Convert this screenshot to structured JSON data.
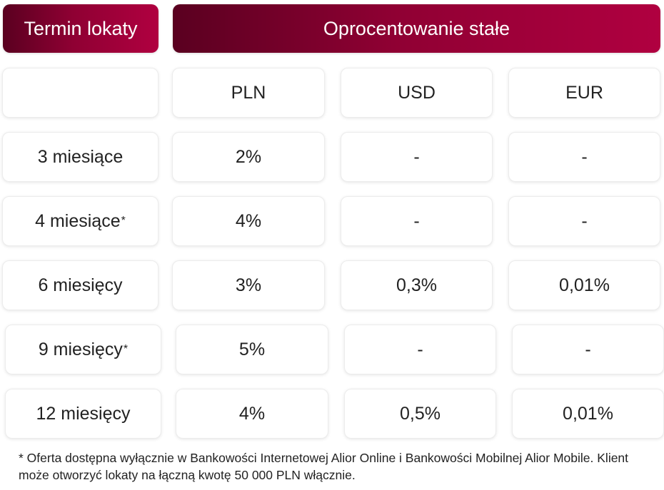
{
  "header": {
    "term_label": "Termin lokaty",
    "rate_label": "Oprocentowanie stałe"
  },
  "currencies": [
    "PLN",
    "USD",
    "EUR"
  ],
  "rows": [
    {
      "term": "3 miesiące",
      "asterisk": "",
      "pln": "2%",
      "usd": "-",
      "eur": "-"
    },
    {
      "term": "4 miesiące",
      "asterisk": "*",
      "pln": "4%",
      "usd": "-",
      "eur": "-"
    },
    {
      "term": "6 miesięcy",
      "asterisk": "",
      "pln": "3%",
      "usd": "0,3%",
      "eur": "0,01%"
    },
    {
      "term": "9 miesięcy",
      "asterisk": "*",
      "pln": "5%",
      "usd": "-",
      "eur": "-"
    },
    {
      "term": "12 miesięcy",
      "asterisk": "",
      "pln": "4%",
      "usd": "0,5%",
      "eur": "0,01%"
    }
  ],
  "footnote": "* Oferta dostępna wyłącznie w Bankowości Internetowej Alior Online i Bankowości Mobilnej Alior Mobile. Klient może otworzyć lokaty na łączną kwotę 50 000 PLN włącznie.",
  "colors": {
    "header_gradient_start": "#5a0020",
    "header_gradient_end": "#b00040",
    "header_text": "#ffffff"
  }
}
